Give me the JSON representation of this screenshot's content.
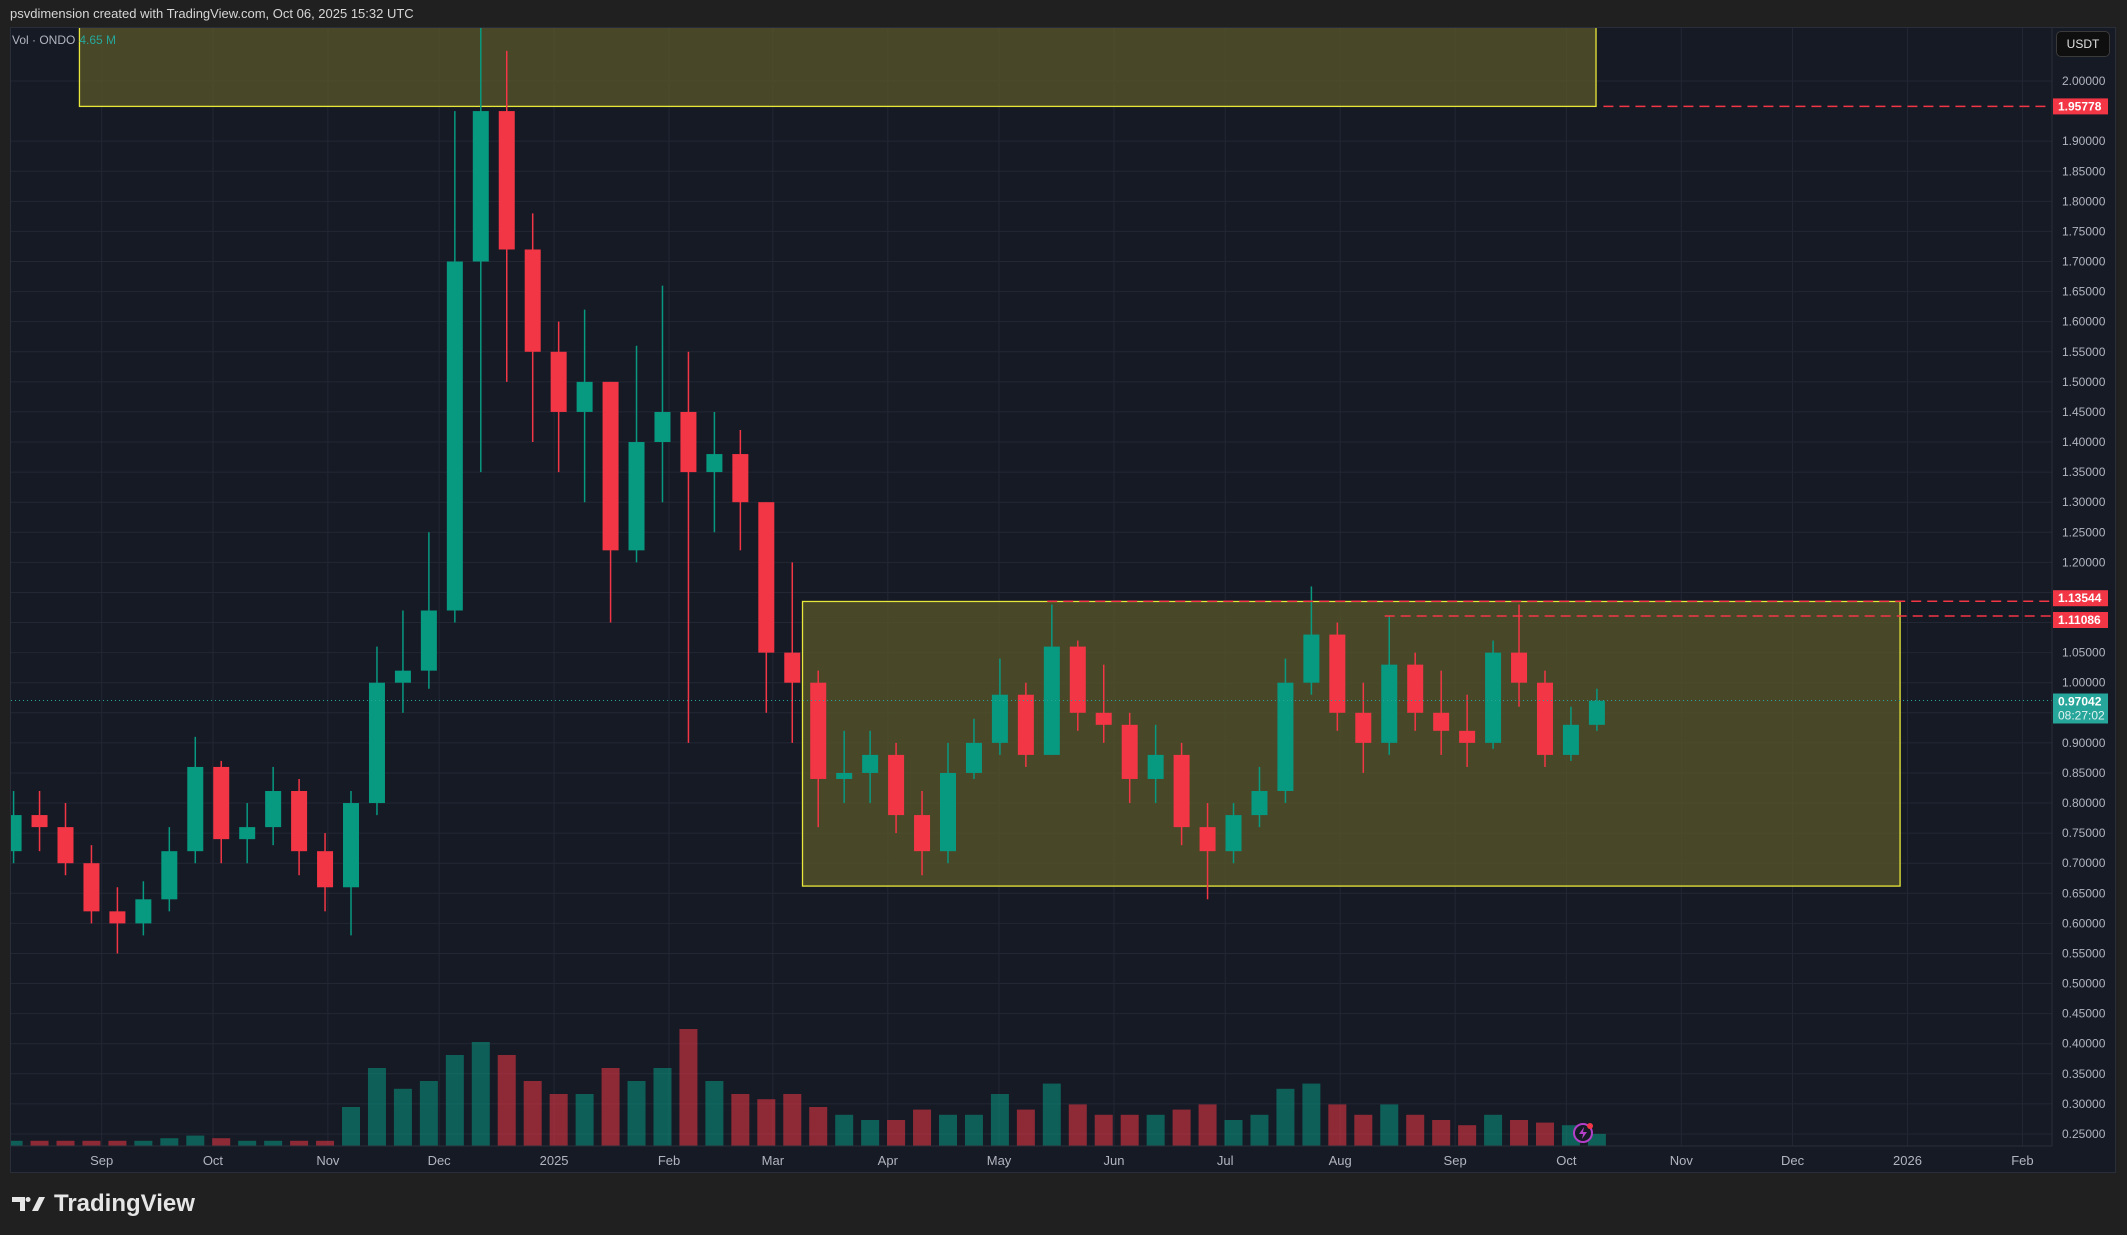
{
  "header": {
    "caption": "psvdimension created with TradingView.com, Oct 06, 2025 15:32 UTC"
  },
  "legend": {
    "label": "Vol · ONDO",
    "value": "4.65 M"
  },
  "currency_button": "USDT",
  "logo_text": "TradingView",
  "colors": {
    "up": "#089981",
    "down": "#f23645",
    "box_fill": "#5b5a2a",
    "box_border": "#e8e83a",
    "level_line": "#f23645",
    "price_line": "#26a69a",
    "background": "#161a25",
    "grid": "#232734"
  },
  "chart_data": {
    "type": "candlestick",
    "symbol": "ONDO/USDT",
    "interval_shown": "weekly approximation of the daily candles",
    "ylim": [
      0.22,
      2.12
    ],
    "y_ticks": [
      "2.00000",
      "1.90000",
      "1.85000",
      "1.80000",
      "1.75000",
      "1.70000",
      "1.65000",
      "1.60000",
      "1.55000",
      "1.50000",
      "1.45000",
      "1.40000",
      "1.35000",
      "1.30000",
      "1.25000",
      "1.20000",
      "1.05000",
      "1.00000",
      "0.90000",
      "0.85000",
      "0.80000",
      "0.75000",
      "0.70000",
      "0.65000",
      "0.60000",
      "0.55000",
      "0.50000",
      "0.45000",
      "0.40000",
      "0.35000",
      "0.30000",
      "0.25000"
    ],
    "x_ticks": [
      {
        "label": "Sep",
        "date": "2024-09-01"
      },
      {
        "label": "Oct",
        "date": "2024-10-01"
      },
      {
        "label": "Nov",
        "date": "2024-11-01"
      },
      {
        "label": "Dec",
        "date": "2024-12-01"
      },
      {
        "label": "2025",
        "date": "2025-01-01"
      },
      {
        "label": "Feb",
        "date": "2025-02-01"
      },
      {
        "label": "Mar",
        "date": "2025-03-01"
      },
      {
        "label": "Apr",
        "date": "2025-04-01"
      },
      {
        "label": "May",
        "date": "2025-05-01"
      },
      {
        "label": "Jun",
        "date": "2025-06-01"
      },
      {
        "label": "Jul",
        "date": "2025-07-01"
      },
      {
        "label": "Aug",
        "date": "2025-08-01"
      },
      {
        "label": "Sep",
        "date": "2025-09-01"
      },
      {
        "label": "Oct",
        "date": "2025-10-01"
      },
      {
        "label": "Nov",
        "date": "2025-11-01"
      },
      {
        "label": "Dec",
        "date": "2025-12-01"
      },
      {
        "label": "2026",
        "date": "2026-01-01"
      },
      {
        "label": "Feb",
        "date": "2026-02-01"
      }
    ],
    "candles": [
      [
        "2024-08-05",
        0.72,
        0.82,
        0.7,
        0.78,
        2
      ],
      [
        "2024-08-12",
        0.78,
        0.82,
        0.72,
        0.76,
        2
      ],
      [
        "2024-08-19",
        0.76,
        0.8,
        0.68,
        0.7,
        2
      ],
      [
        "2024-08-26",
        0.7,
        0.73,
        0.6,
        0.62,
        2
      ],
      [
        "2024-09-02",
        0.62,
        0.66,
        0.55,
        0.6,
        2
      ],
      [
        "2024-09-09",
        0.6,
        0.67,
        0.58,
        0.64,
        2
      ],
      [
        "2024-09-16",
        0.64,
        0.76,
        0.62,
        0.72,
        3
      ],
      [
        "2024-09-23",
        0.72,
        0.91,
        0.7,
        0.86,
        4
      ],
      [
        "2024-09-30",
        0.86,
        0.87,
        0.7,
        0.74,
        3
      ],
      [
        "2024-10-07",
        0.74,
        0.8,
        0.7,
        0.76,
        2
      ],
      [
        "2024-10-14",
        0.76,
        0.86,
        0.73,
        0.82,
        2
      ],
      [
        "2024-10-21",
        0.82,
        0.84,
        0.68,
        0.72,
        2
      ],
      [
        "2024-10-28",
        0.72,
        0.75,
        0.62,
        0.66,
        2
      ],
      [
        "2024-11-04",
        0.66,
        0.82,
        0.58,
        0.8,
        15
      ],
      [
        "2024-11-11",
        0.8,
        1.06,
        0.78,
        1.0,
        30
      ],
      [
        "2024-11-18",
        1.0,
        1.12,
        0.95,
        1.02,
        22
      ],
      [
        "2024-11-25",
        1.02,
        1.25,
        0.99,
        1.12,
        25
      ],
      [
        "2024-12-02",
        1.12,
        1.95,
        1.1,
        1.7,
        35
      ],
      [
        "2024-12-09",
        1.7,
        2.14,
        1.35,
        1.95,
        40
      ],
      [
        "2024-12-16",
        1.95,
        2.05,
        1.5,
        1.72,
        35
      ],
      [
        "2024-12-23",
        1.72,
        1.78,
        1.4,
        1.55,
        25
      ],
      [
        "2024-12-30",
        1.55,
        1.6,
        1.35,
        1.45,
        20
      ],
      [
        "2025-01-06",
        1.45,
        1.62,
        1.3,
        1.5,
        20
      ],
      [
        "2025-01-13",
        1.5,
        1.5,
        1.1,
        1.22,
        30
      ],
      [
        "2025-01-20",
        1.22,
        1.56,
        1.2,
        1.4,
        25
      ],
      [
        "2025-01-27",
        1.4,
        1.66,
        1.3,
        1.45,
        30
      ],
      [
        "2025-02-03",
        1.45,
        1.55,
        0.9,
        1.35,
        45
      ],
      [
        "2025-02-10",
        1.35,
        1.45,
        1.25,
        1.38,
        25
      ],
      [
        "2025-02-17",
        1.38,
        1.42,
        1.22,
        1.3,
        20
      ],
      [
        "2025-02-24",
        1.3,
        1.3,
        0.95,
        1.05,
        18
      ],
      [
        "2025-03-03",
        1.05,
        1.2,
        0.9,
        1.0,
        20
      ],
      [
        "2025-03-10",
        1.0,
        1.02,
        0.76,
        0.84,
        15
      ],
      [
        "2025-03-17",
        0.84,
        0.92,
        0.8,
        0.85,
        12
      ],
      [
        "2025-03-24",
        0.85,
        0.92,
        0.8,
        0.88,
        10
      ],
      [
        "2025-03-31",
        0.88,
        0.9,
        0.75,
        0.78,
        10
      ],
      [
        "2025-04-07",
        0.78,
        0.82,
        0.68,
        0.72,
        14
      ],
      [
        "2025-04-14",
        0.72,
        0.9,
        0.7,
        0.85,
        12
      ],
      [
        "2025-04-21",
        0.85,
        0.94,
        0.84,
        0.9,
        12
      ],
      [
        "2025-04-28",
        0.9,
        1.04,
        0.88,
        0.98,
        20
      ],
      [
        "2025-05-05",
        0.98,
        1.0,
        0.86,
        0.88,
        14
      ],
      [
        "2025-05-12",
        0.88,
        1.13,
        0.88,
        1.06,
        24
      ],
      [
        "2025-05-19",
        1.06,
        1.07,
        0.92,
        0.95,
        16
      ],
      [
        "2025-05-26",
        0.95,
        1.03,
        0.9,
        0.93,
        12
      ],
      [
        "2025-06-02",
        0.93,
        0.95,
        0.8,
        0.84,
        12
      ],
      [
        "2025-06-09",
        0.84,
        0.93,
        0.8,
        0.88,
        12
      ],
      [
        "2025-06-16",
        0.88,
        0.9,
        0.73,
        0.76,
        14
      ],
      [
        "2025-06-23",
        0.76,
        0.8,
        0.64,
        0.72,
        16
      ],
      [
        "2025-06-30",
        0.72,
        0.8,
        0.7,
        0.78,
        10
      ],
      [
        "2025-07-07",
        0.78,
        0.86,
        0.76,
        0.82,
        12
      ],
      [
        "2025-07-14",
        0.82,
        1.04,
        0.8,
        1.0,
        22
      ],
      [
        "2025-07-21",
        1.0,
        1.16,
        0.98,
        1.08,
        24
      ],
      [
        "2025-07-28",
        1.08,
        1.1,
        0.92,
        0.95,
        16
      ],
      [
        "2025-08-04",
        0.95,
        1.0,
        0.85,
        0.9,
        12
      ],
      [
        "2025-08-11",
        0.9,
        1.11,
        0.88,
        1.03,
        16
      ],
      [
        "2025-08-18",
        1.03,
        1.05,
        0.92,
        0.95,
        12
      ],
      [
        "2025-08-25",
        0.95,
        1.02,
        0.88,
        0.92,
        10
      ],
      [
        "2025-09-01",
        0.92,
        0.98,
        0.86,
        0.9,
        8
      ],
      [
        "2025-09-08",
        0.9,
        1.07,
        0.89,
        1.05,
        12
      ],
      [
        "2025-09-15",
        1.05,
        1.13,
        0.96,
        1.0,
        10
      ],
      [
        "2025-09-22",
        1.0,
        1.02,
        0.86,
        0.88,
        9
      ],
      [
        "2025-09-29",
        0.88,
        0.96,
        0.87,
        0.93,
        8
      ],
      [
        "2025-10-06",
        0.93,
        0.99,
        0.92,
        0.97,
        4.65
      ]
    ],
    "candle_fields": [
      "week_start",
      "open",
      "high",
      "low",
      "close",
      "volume_M"
    ],
    "zones": [
      {
        "date_from": "2024-08-26",
        "date_to": "2025-10-09",
        "price_from": 1.95778,
        "price_to": 2.12
      },
      {
        "date_from": "2025-03-09",
        "date_to": "2025-12-30",
        "price_from": 0.662,
        "price_to": 1.135
      }
    ],
    "levels": [
      {
        "price": 1.95778,
        "label": "1.95778",
        "from": "2025-10-11"
      },
      {
        "price": 1.13544,
        "label": "1.13544",
        "from": "2025-05-14"
      },
      {
        "price": 1.11086,
        "label": "1.11086",
        "from": "2025-08-13"
      }
    ],
    "last_price": {
      "price": 0.97042,
      "label": "0.97042",
      "countdown": "08:27:02"
    }
  }
}
